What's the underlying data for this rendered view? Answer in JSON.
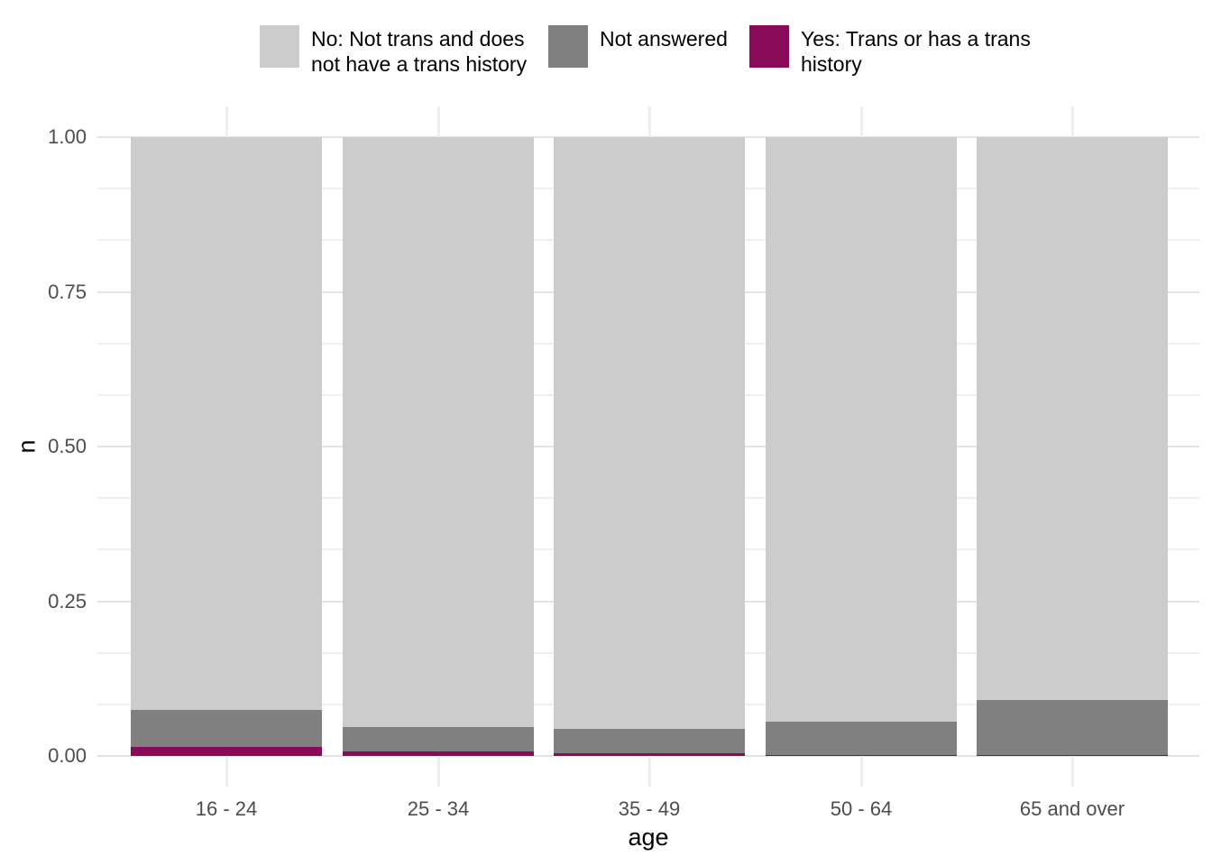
{
  "chart_data": {
    "type": "bar",
    "stacked": true,
    "position": "fill",
    "title": "",
    "xlabel": "age",
    "ylabel": "n",
    "categories": [
      "16 - 24",
      "25 - 34",
      "35 - 49",
      "50 - 64",
      "65 and over"
    ],
    "series": [
      {
        "name": "No: Not trans and does not have a trans history",
        "color": "#cccccc",
        "values": [
          0.925,
          0.953,
          0.956,
          0.944,
          0.909
        ]
      },
      {
        "name": "Not answered",
        "color": "#808080",
        "values": [
          0.06,
          0.04,
          0.04,
          0.054,
          0.09
        ]
      },
      {
        "name": "Yes: Trans or has a trans history",
        "color": "#8a0a5a",
        "values": [
          0.015,
          0.007,
          0.004,
          0.002,
          0.001
        ]
      }
    ],
    "ylim": [
      0,
      1
    ],
    "yticks": [
      {
        "value": 0.0,
        "label": "0.00"
      },
      {
        "value": 0.25,
        "label": "0.25"
      },
      {
        "value": 0.5,
        "label": "0.50"
      },
      {
        "value": 0.75,
        "label": "0.75"
      },
      {
        "value": 1.0,
        "label": "1.00"
      }
    ],
    "grid": true,
    "minor_gridline_step": 0.08333,
    "major_gridline_values": [
      0,
      0.25,
      0.5,
      0.75,
      1
    ],
    "legend_position": "top"
  },
  "legend": {
    "items": [
      {
        "label": "No: Not trans and does\nnot have a trans history",
        "color": "#cccccc"
      },
      {
        "label": "Not answered",
        "color": "#808080"
      },
      {
        "label": "Yes: Trans or has a trans\nhistory",
        "color": "#8a0a5a"
      }
    ]
  },
  "axes": {
    "x": {
      "title": "age"
    },
    "y": {
      "title": "n"
    }
  }
}
